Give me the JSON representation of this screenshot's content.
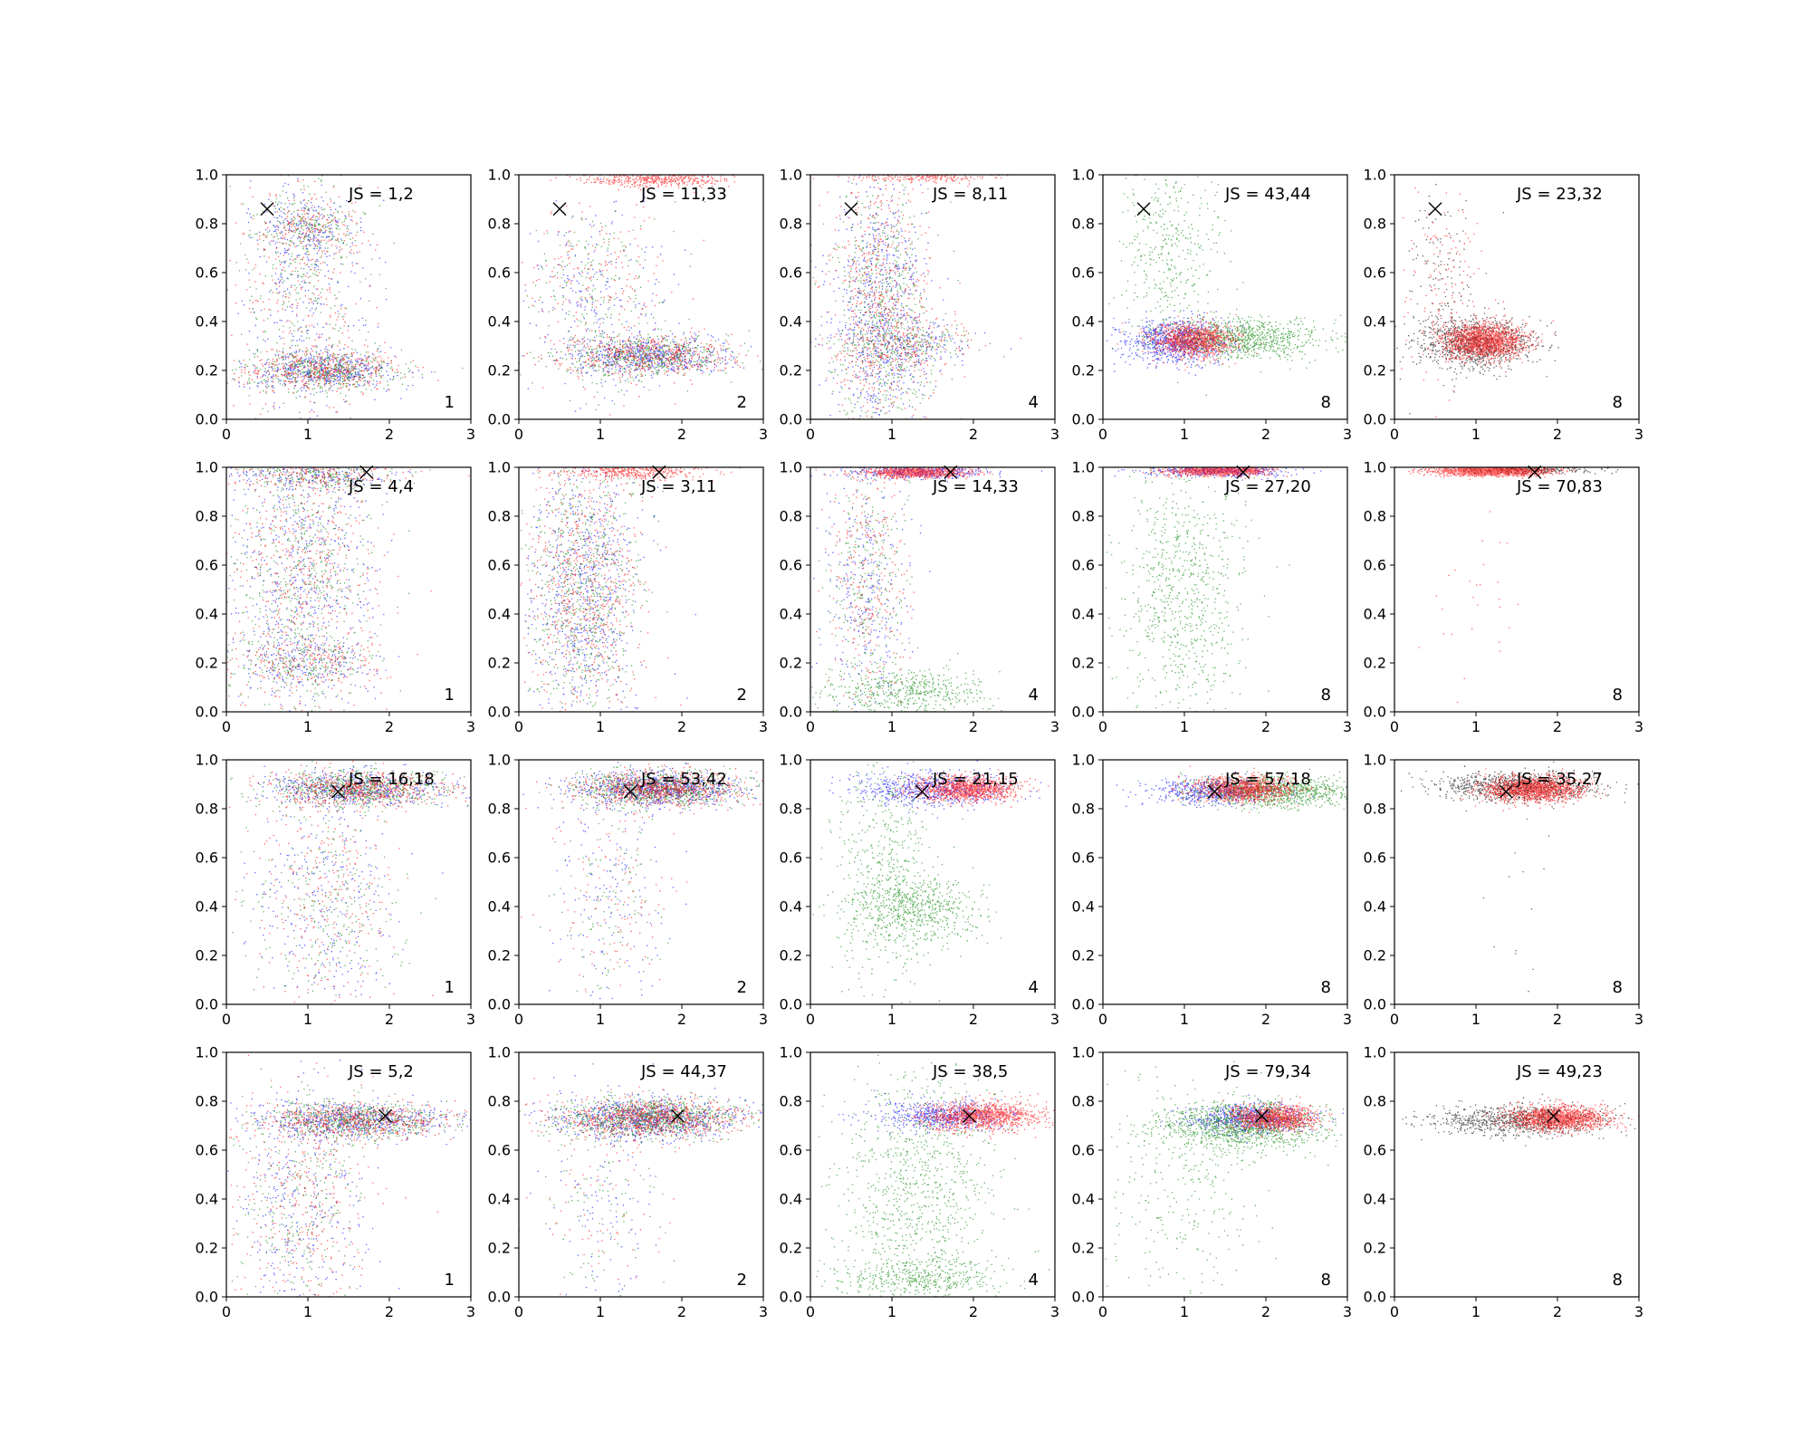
{
  "chart_data": {
    "type": "scatter",
    "layout": {
      "rows": 4,
      "cols": 5
    },
    "xlim": [
      0,
      3
    ],
    "ylim": [
      0,
      1
    ],
    "xticks": [
      "0",
      "1",
      "2",
      "3"
    ],
    "yticks": [
      "0.0",
      "0.2",
      "0.4",
      "0.6",
      "0.8",
      "1.0"
    ],
    "grid": false,
    "colors": {
      "blue": "#0000ff",
      "green": "#008000",
      "red": "#ff0000",
      "black": "#000000",
      "axis": "#000000"
    },
    "marker": {
      "symbol": "x",
      "color": "#000000"
    },
    "panels": [
      {
        "js": "JS = 1,2",
        "corner": "1",
        "target": [
          0.5,
          0.86
        ],
        "colors": [
          "blue",
          "green",
          "red"
        ],
        "clusters": [
          {
            "c": "mix",
            "x": 1.2,
            "y": 0.2,
            "sx": 0.45,
            "sy": 0.04,
            "n": 1400
          },
          {
            "c": "mix",
            "x": 0.9,
            "y": 0.55,
            "sx": 0.4,
            "sy": 0.28,
            "n": 900
          },
          {
            "c": "mix",
            "x": 1.0,
            "y": 0.78,
            "sx": 0.3,
            "sy": 0.06,
            "n": 500
          }
        ]
      },
      {
        "js": "JS = 11,33",
        "corner": "2",
        "target": [
          0.5,
          0.86
        ],
        "colors": [
          "blue",
          "green",
          "red"
        ],
        "clusters": [
          {
            "c": "mix",
            "x": 1.6,
            "y": 0.26,
            "sx": 0.5,
            "sy": 0.04,
            "n": 1600
          },
          {
            "c": "red",
            "x": 1.7,
            "y": 0.98,
            "sx": 0.45,
            "sy": 0.015,
            "n": 450
          },
          {
            "c": "mix",
            "x": 1.0,
            "y": 0.5,
            "sx": 0.45,
            "sy": 0.2,
            "n": 700
          }
        ]
      },
      {
        "js": "JS = 8,11",
        "corner": "4",
        "target": [
          0.5,
          0.86
        ],
        "colors": [
          "blue",
          "green",
          "red"
        ],
        "clusters": [
          {
            "c": "mix",
            "x": 0.85,
            "y": 0.45,
            "sx": 0.3,
            "sy": 0.28,
            "n": 2000
          },
          {
            "c": "mix",
            "x": 1.2,
            "y": 0.3,
            "sx": 0.4,
            "sy": 0.05,
            "n": 500
          },
          {
            "c": "red",
            "x": 1.4,
            "y": 0.99,
            "sx": 0.4,
            "sy": 0.01,
            "n": 200
          }
        ]
      },
      {
        "js": "JS = 43,44",
        "corner": "8",
        "target": [
          0.5,
          0.86
        ],
        "colors": [
          "blue",
          "green",
          "red"
        ],
        "clusters": [
          {
            "c": "green",
            "x": 1.7,
            "y": 0.33,
            "sx": 0.5,
            "sy": 0.04,
            "n": 900
          },
          {
            "c": "blue",
            "x": 0.9,
            "y": 0.32,
            "sx": 0.3,
            "sy": 0.045,
            "n": 900
          },
          {
            "c": "red",
            "x": 1.1,
            "y": 0.32,
            "sx": 0.25,
            "sy": 0.035,
            "n": 1100
          },
          {
            "c": "green",
            "x": 0.8,
            "y": 0.7,
            "sx": 0.35,
            "sy": 0.2,
            "n": 400
          }
        ]
      },
      {
        "js": "JS = 23,32",
        "corner": "8",
        "target": [
          0.5,
          0.86
        ],
        "colors": [
          "black",
          "red"
        ],
        "clusters": [
          {
            "c": "black",
            "x": 1.0,
            "y": 0.31,
            "sx": 0.35,
            "sy": 0.05,
            "n": 1000
          },
          {
            "c": "red",
            "x": 1.1,
            "y": 0.32,
            "sx": 0.25,
            "sy": 0.035,
            "n": 1600
          },
          {
            "c": "mix",
            "x": 0.6,
            "y": 0.55,
            "sx": 0.25,
            "sy": 0.2,
            "n": 300
          }
        ]
      },
      {
        "js": "JS = 4,4",
        "corner": "1",
        "target": [
          1.72,
          0.98
        ],
        "colors": [
          "blue",
          "green",
          "red"
        ],
        "clusters": [
          {
            "c": "mix",
            "x": 0.9,
            "y": 0.55,
            "sx": 0.45,
            "sy": 0.3,
            "n": 1800
          },
          {
            "c": "mix",
            "x": 1.1,
            "y": 0.97,
            "sx": 0.5,
            "sy": 0.03,
            "n": 600
          },
          {
            "c": "mix",
            "x": 1.0,
            "y": 0.2,
            "sx": 0.45,
            "sy": 0.05,
            "n": 500
          }
        ]
      },
      {
        "js": "JS = 3,11",
        "corner": "2",
        "target": [
          1.72,
          0.98
        ],
        "colors": [
          "blue",
          "green",
          "red"
        ],
        "clusters": [
          {
            "c": "mix",
            "x": 0.8,
            "y": 0.5,
            "sx": 0.35,
            "sy": 0.3,
            "n": 2200
          },
          {
            "c": "red",
            "x": 1.4,
            "y": 0.98,
            "sx": 0.4,
            "sy": 0.015,
            "n": 400
          }
        ]
      },
      {
        "js": "JS = 14,33",
        "corner": "4",
        "target": [
          1.72,
          0.98
        ],
        "colors": [
          "blue",
          "green",
          "red"
        ],
        "clusters": [
          {
            "c": "red",
            "x": 1.3,
            "y": 0.98,
            "sx": 0.3,
            "sy": 0.012,
            "n": 900
          },
          {
            "c": "blue",
            "x": 1.3,
            "y": 0.98,
            "sx": 0.45,
            "sy": 0.015,
            "n": 400
          },
          {
            "c": "mix",
            "x": 0.7,
            "y": 0.5,
            "sx": 0.25,
            "sy": 0.28,
            "n": 900
          },
          {
            "c": "green",
            "x": 1.2,
            "y": 0.08,
            "sx": 0.5,
            "sy": 0.05,
            "n": 500
          }
        ]
      },
      {
        "js": "JS = 27,20",
        "corner": "8",
        "target": [
          1.72,
          0.98
        ],
        "colors": [
          "blue",
          "green",
          "red"
        ],
        "clusters": [
          {
            "c": "red",
            "x": 1.4,
            "y": 0.985,
            "sx": 0.3,
            "sy": 0.01,
            "n": 1000
          },
          {
            "c": "blue",
            "x": 1.4,
            "y": 0.985,
            "sx": 0.45,
            "sy": 0.012,
            "n": 400
          },
          {
            "c": "green",
            "x": 1.0,
            "y": 0.5,
            "sx": 0.4,
            "sy": 0.28,
            "n": 800
          }
        ]
      },
      {
        "js": "JS = 70,83",
        "corner": "8",
        "target": [
          1.72,
          0.98
        ],
        "colors": [
          "black",
          "red"
        ],
        "clusters": [
          {
            "c": "red",
            "x": 1.2,
            "y": 0.985,
            "sx": 0.35,
            "sy": 0.01,
            "n": 1600
          },
          {
            "c": "black",
            "x": 1.6,
            "y": 0.99,
            "sx": 0.4,
            "sy": 0.008,
            "n": 300
          },
          {
            "c": "red",
            "x": 1.0,
            "y": 0.5,
            "sx": 0.3,
            "sy": 0.25,
            "n": 30
          }
        ]
      },
      {
        "js": "JS = 16,18",
        "corner": "1",
        "target": [
          1.37,
          0.87
        ],
        "colors": [
          "blue",
          "green",
          "red"
        ],
        "clusters": [
          {
            "c": "mix",
            "x": 1.6,
            "y": 0.88,
            "sx": 0.55,
            "sy": 0.035,
            "n": 1800
          },
          {
            "c": "mix",
            "x": 1.2,
            "y": 0.45,
            "sx": 0.45,
            "sy": 0.25,
            "n": 900
          }
        ]
      },
      {
        "js": "JS = 53,42",
        "corner": "2",
        "target": [
          1.37,
          0.87
        ],
        "colors": [
          "blue",
          "green",
          "red"
        ],
        "clusters": [
          {
            "c": "mix",
            "x": 1.7,
            "y": 0.88,
            "sx": 0.5,
            "sy": 0.035,
            "n": 2400
          },
          {
            "c": "mix",
            "x": 1.1,
            "y": 0.45,
            "sx": 0.35,
            "sy": 0.25,
            "n": 400
          }
        ]
      },
      {
        "js": "JS = 21,15",
        "corner": "4",
        "target": [
          1.37,
          0.87
        ],
        "colors": [
          "blue",
          "green",
          "red"
        ],
        "clusters": [
          {
            "c": "red",
            "x": 1.9,
            "y": 0.88,
            "sx": 0.3,
            "sy": 0.025,
            "n": 1200
          },
          {
            "c": "blue",
            "x": 1.5,
            "y": 0.88,
            "sx": 0.45,
            "sy": 0.035,
            "n": 700
          },
          {
            "c": "green",
            "x": 1.3,
            "y": 0.38,
            "sx": 0.4,
            "sy": 0.07,
            "n": 600
          },
          {
            "c": "green",
            "x": 0.9,
            "y": 0.55,
            "sx": 0.3,
            "sy": 0.25,
            "n": 500
          }
        ]
      },
      {
        "js": "JS = 57,18",
        "corner": "8",
        "target": [
          1.37,
          0.87
        ],
        "colors": [
          "blue",
          "green",
          "red"
        ],
        "clusters": [
          {
            "c": "green",
            "x": 2.1,
            "y": 0.87,
            "sx": 0.5,
            "sy": 0.03,
            "n": 1000
          },
          {
            "c": "blue",
            "x": 1.4,
            "y": 0.87,
            "sx": 0.4,
            "sy": 0.025,
            "n": 600
          },
          {
            "c": "red",
            "x": 1.7,
            "y": 0.88,
            "sx": 0.3,
            "sy": 0.025,
            "n": 1100
          }
        ]
      },
      {
        "js": "JS = 35,27",
        "corner": "8",
        "target": [
          1.37,
          0.87
        ],
        "colors": [
          "black",
          "red"
        ],
        "clusters": [
          {
            "c": "black",
            "x": 1.5,
            "y": 0.89,
            "sx": 0.5,
            "sy": 0.03,
            "n": 900
          },
          {
            "c": "red",
            "x": 1.7,
            "y": 0.88,
            "sx": 0.3,
            "sy": 0.025,
            "n": 1500
          },
          {
            "c": "black",
            "x": 1.5,
            "y": 0.5,
            "sx": 0.3,
            "sy": 0.25,
            "n": 15
          }
        ]
      },
      {
        "js": "JS = 5,2",
        "corner": "1",
        "target": [
          1.95,
          0.74
        ],
        "colors": [
          "blue",
          "green",
          "red"
        ],
        "clusters": [
          {
            "c": "mix",
            "x": 1.6,
            "y": 0.72,
            "sx": 0.55,
            "sy": 0.035,
            "n": 1800
          },
          {
            "c": "mix",
            "x": 0.9,
            "y": 0.4,
            "sx": 0.4,
            "sy": 0.25,
            "n": 1000
          }
        ]
      },
      {
        "js": "JS = 44,37",
        "corner": "2",
        "target": [
          1.95,
          0.74
        ],
        "colors": [
          "blue",
          "green",
          "red"
        ],
        "clusters": [
          {
            "c": "mix",
            "x": 1.6,
            "y": 0.73,
            "sx": 0.55,
            "sy": 0.04,
            "n": 2600
          },
          {
            "c": "mix",
            "x": 1.0,
            "y": 0.4,
            "sx": 0.4,
            "sy": 0.25,
            "n": 300
          }
        ]
      },
      {
        "js": "JS = 38,5",
        "corner": "4",
        "target": [
          1.95,
          0.74
        ],
        "colors": [
          "blue",
          "green",
          "red"
        ],
        "clusters": [
          {
            "c": "red",
            "x": 2.1,
            "y": 0.74,
            "sx": 0.35,
            "sy": 0.03,
            "n": 1200
          },
          {
            "c": "blue",
            "x": 1.6,
            "y": 0.74,
            "sx": 0.4,
            "sy": 0.03,
            "n": 600
          },
          {
            "c": "green",
            "x": 1.3,
            "y": 0.45,
            "sx": 0.5,
            "sy": 0.25,
            "n": 900
          },
          {
            "c": "green",
            "x": 1.3,
            "y": 0.08,
            "sx": 0.5,
            "sy": 0.04,
            "n": 400
          }
        ]
      },
      {
        "js": "JS = 79,34",
        "corner": "8",
        "target": [
          1.95,
          0.74
        ],
        "colors": [
          "blue",
          "green",
          "red"
        ],
        "clusters": [
          {
            "c": "green",
            "x": 1.7,
            "y": 0.7,
            "sx": 0.5,
            "sy": 0.05,
            "n": 1200
          },
          {
            "c": "blue",
            "x": 1.8,
            "y": 0.73,
            "sx": 0.35,
            "sy": 0.03,
            "n": 700
          },
          {
            "c": "red",
            "x": 2.1,
            "y": 0.73,
            "sx": 0.25,
            "sy": 0.025,
            "n": 1100
          },
          {
            "c": "green",
            "x": 1.0,
            "y": 0.45,
            "sx": 0.5,
            "sy": 0.25,
            "n": 300
          }
        ]
      },
      {
        "js": "JS = 49,23",
        "corner": "8",
        "target": [
          1.95,
          0.74
        ],
        "colors": [
          "black",
          "red"
        ],
        "clusters": [
          {
            "c": "black",
            "x": 1.5,
            "y": 0.72,
            "sx": 0.55,
            "sy": 0.03,
            "n": 900
          },
          {
            "c": "red",
            "x": 2.0,
            "y": 0.73,
            "sx": 0.3,
            "sy": 0.025,
            "n": 1500
          }
        ]
      }
    ]
  }
}
